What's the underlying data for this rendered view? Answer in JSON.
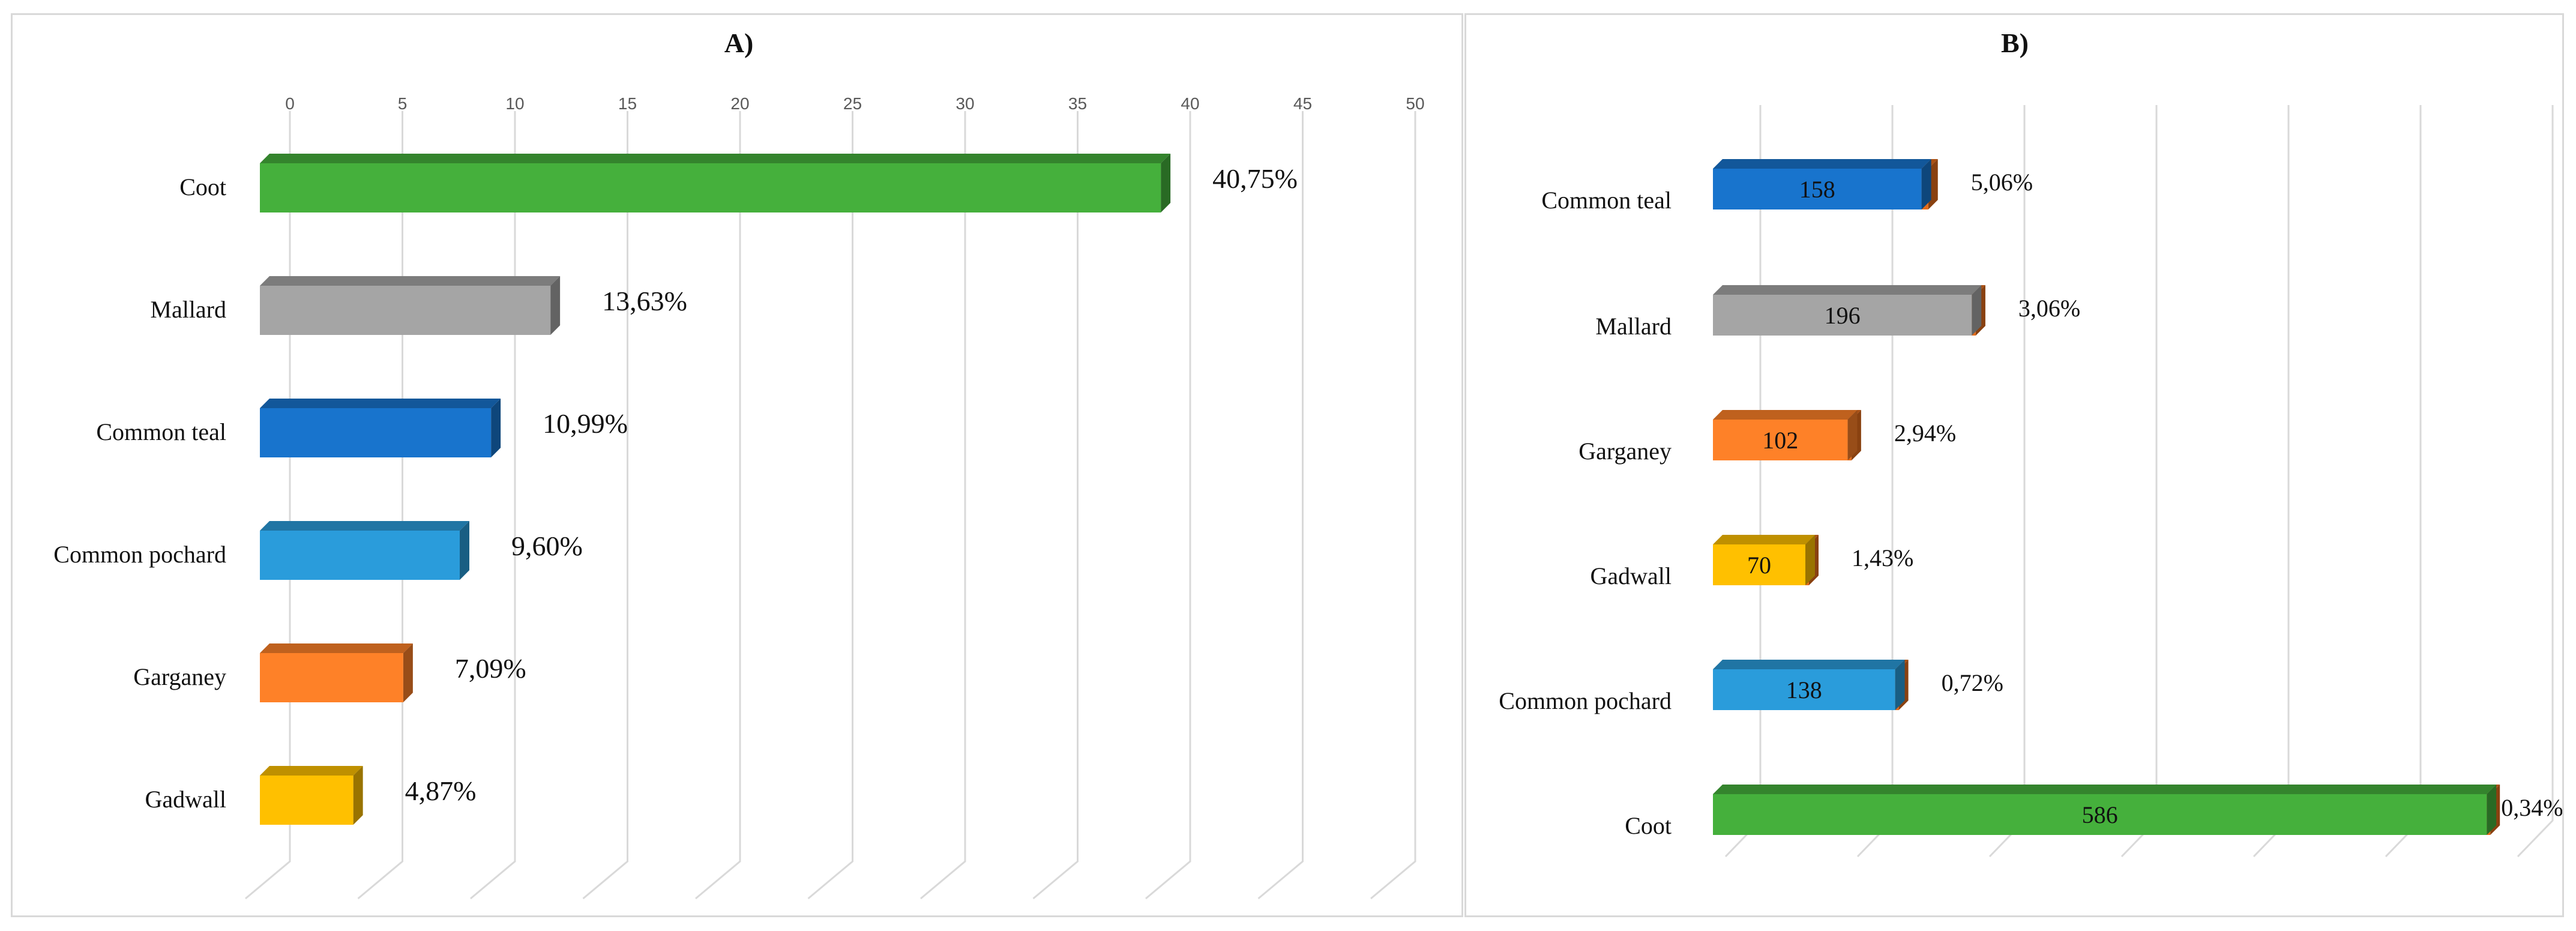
{
  "chart_data": [
    {
      "panel": "A",
      "type": "bar",
      "orientation": "horizontal",
      "style": "3d",
      "title": "A)",
      "categories": [
        "Coot",
        "Mallard",
        "Common teal",
        "Common pochard",
        "Garganey",
        "Gadwall"
      ],
      "values": [
        40.75,
        13.63,
        10.99,
        9.6,
        7.09,
        4.87
      ],
      "data_labels": [
        "40,75%",
        "13,63%",
        "10,99%",
        "9,60%",
        "7,09%",
        "4,87%"
      ],
      "colors": [
        "#45b03c",
        "#a5a5a5",
        "#1874cd",
        "#2a9cdb",
        "#fe8128",
        "#ffc000"
      ],
      "xlim": [
        0,
        50
      ],
      "xticks": [
        "0",
        "5",
        "10",
        "15",
        "20",
        "25",
        "30",
        "35",
        "40",
        "45",
        "50"
      ],
      "xaxis_position": "top",
      "grid": true,
      "legend": "none"
    },
    {
      "panel": "B",
      "type": "bar",
      "orientation": "horizontal",
      "style": "3d-stacked",
      "title": "B)",
      "categories": [
        "Common teal",
        "Mallard",
        "Garganey",
        "Gadwall",
        "Common pochard",
        "Coot"
      ],
      "series": [
        {
          "values": [
            158,
            196,
            102,
            70,
            138,
            586
          ],
          "labels": [
            "158",
            "196",
            "102",
            "70",
            "138",
            "586"
          ]
        },
        {
          "values": [
            5.06,
            3.06,
            2.94,
            1.43,
            0.72,
            0.34
          ],
          "labels": [
            "5,06%",
            "3,06%",
            "2,94%",
            "1,43%",
            "0,72%",
            "0,34%"
          ],
          "color": "#e46c1a"
        }
      ],
      "colors": [
        "#1874cd",
        "#a5a5a5",
        "#fe8128",
        "#ffc000",
        "#2a9cdb",
        "#45b03c"
      ],
      "xlim": [
        0,
        600
      ],
      "grid": true,
      "legend": "none"
    }
  ]
}
